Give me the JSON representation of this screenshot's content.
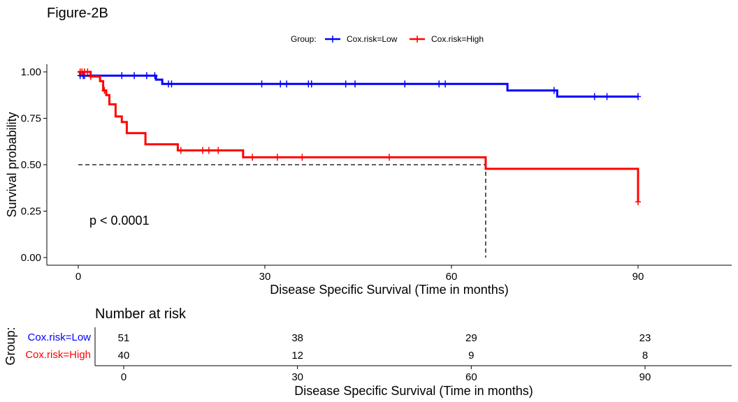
{
  "figure_title": "Figure-2B",
  "legend": {
    "title": "Group:",
    "entries": [
      {
        "label": "Cox.risk=Low",
        "color": "#0000FF"
      },
      {
        "label": "Cox.risk=High",
        "color": "#FF0000"
      }
    ]
  },
  "chart_data": [
    {
      "type": "line",
      "subtype": "kaplan-meier",
      "title": "",
      "xlabel": "Disease Specific Survival (Time in months)",
      "ylabel": "Survival probability",
      "xlim": [
        0,
        105
      ],
      "ylim": [
        0,
        1
      ],
      "xticks": [
        0,
        30,
        60,
        90
      ],
      "yticks": [
        0,
        0.25,
        0.5,
        0.75,
        1.0
      ],
      "ytick_labels": [
        "0.00",
        "0.25",
        "0.50",
        "0.75",
        "1.00"
      ],
      "grid": false,
      "legend_position": "top",
      "annotation": "p < 0.0001",
      "median_line": {
        "y": 0.5,
        "x": 65.5
      },
      "series": [
        {
          "name": "Cox.risk=Low",
          "color": "#0000FF",
          "steps": [
            [
              0,
              1.0
            ],
            [
              0.3,
              0.98
            ],
            [
              12.5,
              0.958
            ],
            [
              13.5,
              0.935
            ],
            [
              69,
              0.9
            ],
            [
              77,
              0.867
            ],
            [
              90,
              0.867
            ]
          ],
          "censored": [
            [
              0.3,
              0.98
            ],
            [
              0.8,
              0.98
            ],
            [
              1.0,
              0.98
            ],
            [
              7.0,
              0.98
            ],
            [
              9.0,
              0.98
            ],
            [
              11.0,
              0.98
            ],
            [
              12.3,
              0.98
            ],
            [
              14.5,
              0.935
            ],
            [
              15.0,
              0.935
            ],
            [
              29.5,
              0.935
            ],
            [
              32.5,
              0.935
            ],
            [
              33.5,
              0.935
            ],
            [
              37.0,
              0.935
            ],
            [
              37.5,
              0.935
            ],
            [
              43.0,
              0.935
            ],
            [
              44.5,
              0.935
            ],
            [
              52.5,
              0.935
            ],
            [
              58.0,
              0.935
            ],
            [
              59.0,
              0.935
            ],
            [
              76.5,
              0.9
            ],
            [
              83.0,
              0.867
            ],
            [
              85.0,
              0.867
            ],
            [
              90.0,
              0.867
            ]
          ]
        },
        {
          "name": "Cox.risk=High",
          "color": "#FF0000",
          "steps": [
            [
              0,
              1.0
            ],
            [
              2.0,
              0.975
            ],
            [
              3.5,
              0.95
            ],
            [
              4.0,
              0.9
            ],
            [
              4.5,
              0.875
            ],
            [
              5.0,
              0.825
            ],
            [
              6.0,
              0.76
            ],
            [
              7.0,
              0.73
            ],
            [
              7.8,
              0.67
            ],
            [
              10.8,
              0.61
            ],
            [
              16.0,
              0.577
            ],
            [
              26.5,
              0.54
            ],
            [
              65.5,
              0.478
            ],
            [
              90.0,
              0.3
            ]
          ],
          "censored": [
            [
              0.3,
              1.0
            ],
            [
              0.6,
              1.0
            ],
            [
              1.0,
              1.0
            ],
            [
              1.5,
              1.0
            ],
            [
              2.0,
              0.975
            ],
            [
              4.2,
              0.9
            ],
            [
              16.5,
              0.577
            ],
            [
              20.0,
              0.577
            ],
            [
              21.0,
              0.577
            ],
            [
              22.5,
              0.577
            ],
            [
              28.0,
              0.54
            ],
            [
              32.0,
              0.54
            ],
            [
              36.0,
              0.54
            ],
            [
              50.0,
              0.54
            ],
            [
              90.0,
              0.3
            ]
          ]
        }
      ]
    },
    {
      "type": "table",
      "title": "Number at risk",
      "xlabel": "Disease Specific Survival (Time in months)",
      "ylabel": "Group:",
      "xlim": [
        0,
        105
      ],
      "xticks": [
        0,
        30,
        60,
        90
      ],
      "rows": [
        {
          "name": "Cox.risk=Low",
          "color": "#0000FF",
          "values": [
            "51",
            "38",
            "29",
            "23"
          ]
        },
        {
          "name": "Cox.risk=High",
          "color": "#FF0000",
          "values": [
            "40",
            "12",
            "9",
            "8"
          ]
        }
      ]
    }
  ]
}
